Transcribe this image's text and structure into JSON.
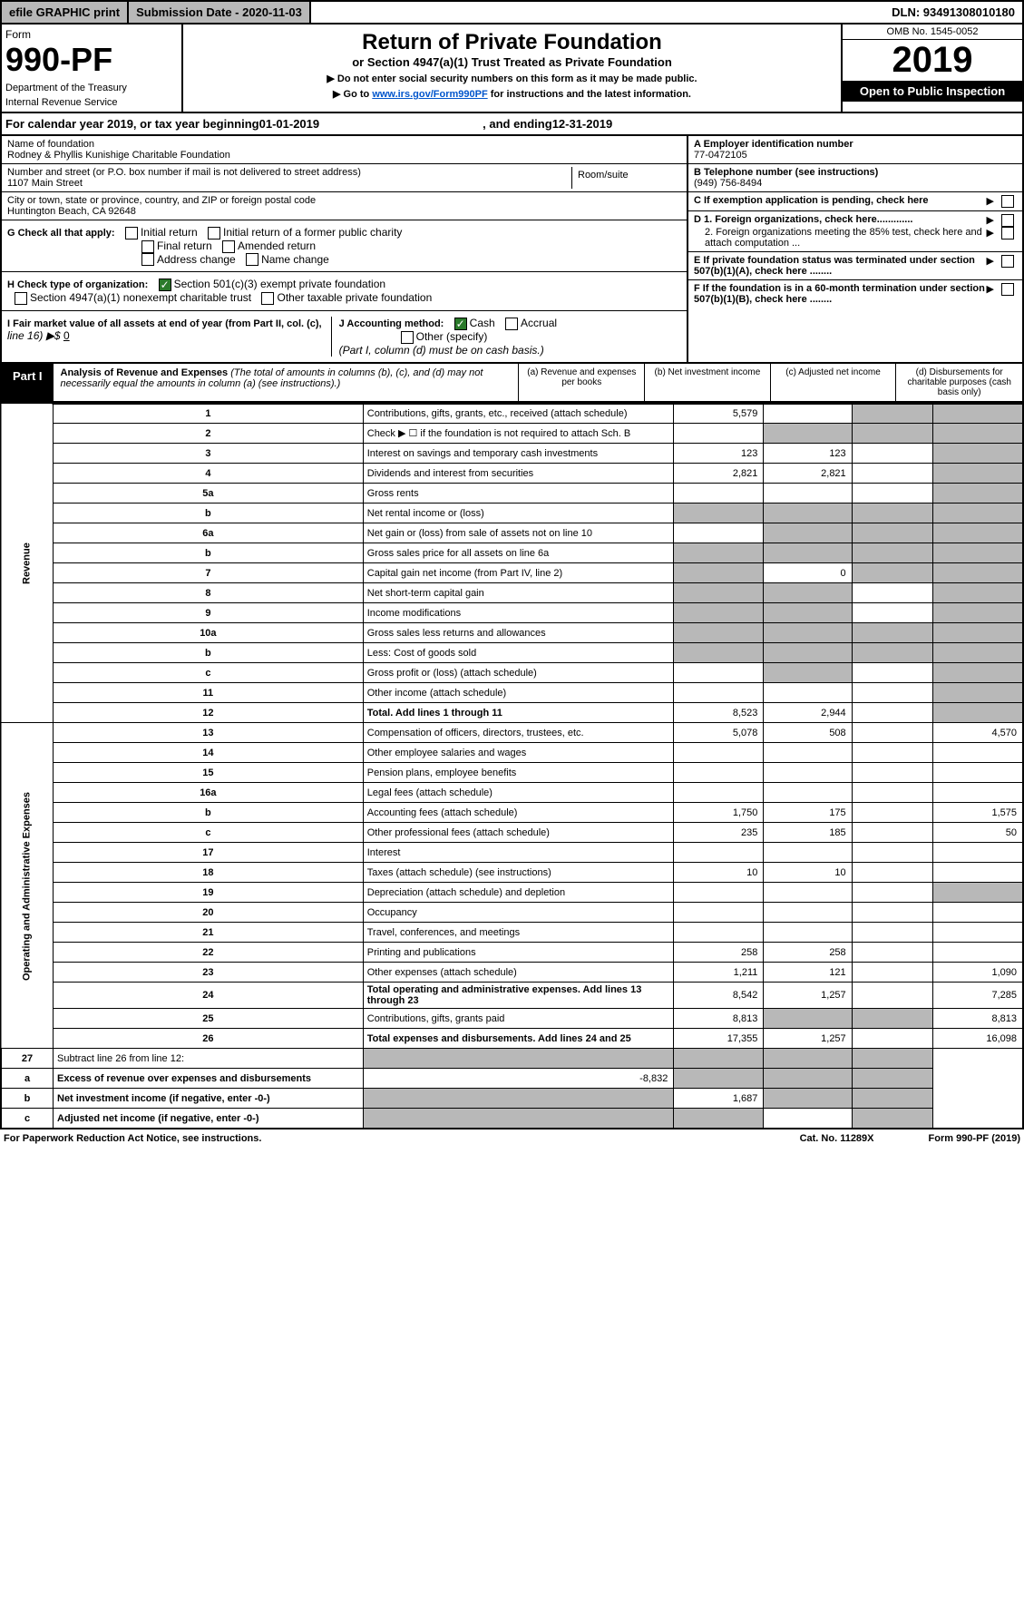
{
  "top": {
    "efile": "efile GRAPHIC print",
    "submission": "Submission Date - 2020-11-03",
    "dln": "DLN: 93491308010180"
  },
  "header": {
    "form_word": "Form",
    "form_num": "990-PF",
    "dept1": "Department of the Treasury",
    "dept2": "Internal Revenue Service",
    "title": "Return of Private Foundation",
    "subtitle": "or Section 4947(a)(1) Trust Treated as Private Foundation",
    "instr1": "▶ Do not enter social security numbers on this form as it may be made public.",
    "instr2_prefix": "▶ Go to ",
    "instr2_link": "www.irs.gov/Form990PF",
    "instr2_suffix": " for instructions and the latest information.",
    "omb": "OMB No. 1545-0052",
    "year": "2019",
    "open": "Open to Public Inspection"
  },
  "cal": {
    "prefix": "For calendar year 2019, or tax year beginning ",
    "begin": "01-01-2019",
    "mid": ", and ending ",
    "end": "12-31-2019"
  },
  "info": {
    "name_lbl": "Name of foundation",
    "name": "Rodney & Phyllis Kunishige Charitable Foundation",
    "addr_lbl": "Number and street (or P.O. box number if mail is not delivered to street address)",
    "addr": "1107 Main Street",
    "suite_lbl": "Room/suite",
    "city_lbl": "City or town, state or province, country, and ZIP or foreign postal code",
    "city": "Huntington Beach, CA  92648",
    "a_lbl": "A Employer identification number",
    "a_val": "77-0472105",
    "b_lbl": "B Telephone number (see instructions)",
    "b_val": "(949) 756-8494",
    "c_lbl": "C If exemption application is pending, check here",
    "d1_lbl": "D 1. Foreign organizations, check here.............",
    "d2_lbl": "2. Foreign organizations meeting the 85% test, check here and attach computation ...",
    "e_lbl": "E If private foundation status was terminated under section 507(b)(1)(A), check here ........",
    "f_lbl": "F If the foundation is in a 60-month termination under section 507(b)(1)(B), check here ........"
  },
  "checks": {
    "g_lbl": "G Check all that apply:",
    "g1": "Initial return",
    "g2": "Initial return of a former public charity",
    "g3": "Final return",
    "g4": "Amended return",
    "g5": "Address change",
    "g6": "Name change",
    "h_lbl": "H Check type of organization:",
    "h1": "Section 501(c)(3) exempt private foundation",
    "h2": "Section 4947(a)(1) nonexempt charitable trust",
    "h3": "Other taxable private foundation",
    "i_lbl": "I Fair market value of all assets at end of year (from Part II, col. (c),",
    "i_line": "line 16) ▶$ ",
    "i_val": "0",
    "j_lbl": "J Accounting method:",
    "j1": "Cash",
    "j2": "Accrual",
    "j3": "Other (specify)",
    "j_note": "(Part I, column (d) must be on cash basis.)"
  },
  "part1": {
    "label": "Part I",
    "title": "Analysis of Revenue and Expenses",
    "note": " (The total of amounts in columns (b), (c), and (d) may not necessarily equal the amounts in column (a) (see instructions).)",
    "col_a": "(a)   Revenue and expenses per books",
    "col_b": "(b)  Net investment income",
    "col_c": "(c)  Adjusted net income",
    "col_d": "(d)  Disbursements for charitable purposes (cash basis only)"
  },
  "sections": {
    "rev": "Revenue",
    "exp": "Operating and Administrative Expenses"
  },
  "rows": [
    {
      "n": "1",
      "d": "s",
      "a": "5,579",
      "b": "",
      "c": "s"
    },
    {
      "n": "2",
      "d": "s",
      "a": "",
      "b": "s",
      "c": "s",
      "html": true
    },
    {
      "n": "3",
      "d": "s",
      "a": "123",
      "b": "123",
      "c": ""
    },
    {
      "n": "4",
      "d": "s",
      "a": "2,821",
      "b": "2,821",
      "c": ""
    },
    {
      "n": "5a",
      "d": "s",
      "a": "",
      "b": "",
      "c": ""
    },
    {
      "n": "b",
      "d": "s",
      "a": "s",
      "b": "s",
      "c": "s"
    },
    {
      "n": "6a",
      "d": "s",
      "a": "",
      "b": "s",
      "c": "s"
    },
    {
      "n": "b",
      "d": "s",
      "a": "s",
      "b": "s",
      "c": "s"
    },
    {
      "n": "7",
      "d": "s",
      "a": "s",
      "b": "0",
      "c": "s"
    },
    {
      "n": "8",
      "d": "s",
      "a": "s",
      "b": "s",
      "c": ""
    },
    {
      "n": "9",
      "d": "s",
      "a": "s",
      "b": "s",
      "c": ""
    },
    {
      "n": "10a",
      "d": "s",
      "a": "s",
      "b": "s",
      "c": "s"
    },
    {
      "n": "b",
      "d": "s",
      "a": "s",
      "b": "s",
      "c": "s"
    },
    {
      "n": "c",
      "d": "s",
      "a": "",
      "b": "s",
      "c": ""
    },
    {
      "n": "11",
      "d": "s",
      "a": "",
      "b": "",
      "c": ""
    },
    {
      "n": "12",
      "d": "s",
      "a": "8,523",
      "b": "2,944",
      "c": "",
      "bold": true
    }
  ],
  "exp_rows": [
    {
      "n": "13",
      "d": "4,570",
      "a": "5,078",
      "b": "508",
      "c": ""
    },
    {
      "n": "14",
      "d": "",
      "a": "",
      "b": "",
      "c": ""
    },
    {
      "n": "15",
      "d": "",
      "a": "",
      "b": "",
      "c": ""
    },
    {
      "n": "16a",
      "d": "",
      "a": "",
      "b": "",
      "c": ""
    },
    {
      "n": "b",
      "d": "1,575",
      "a": "1,750",
      "b": "175",
      "c": ""
    },
    {
      "n": "c",
      "d": "50",
      "a": "235",
      "b": "185",
      "c": ""
    },
    {
      "n": "17",
      "d": "",
      "a": "",
      "b": "",
      "c": ""
    },
    {
      "n": "18",
      "d": "",
      "a": "10",
      "b": "10",
      "c": ""
    },
    {
      "n": "19",
      "d": "s",
      "a": "",
      "b": "",
      "c": ""
    },
    {
      "n": "20",
      "d": "",
      "a": "",
      "b": "",
      "c": ""
    },
    {
      "n": "21",
      "d": "",
      "a": "",
      "b": "",
      "c": ""
    },
    {
      "n": "22",
      "d": "",
      "a": "258",
      "b": "258",
      "c": ""
    },
    {
      "n": "23",
      "d": "1,090",
      "a": "1,211",
      "b": "121",
      "c": ""
    },
    {
      "n": "24",
      "d": "7,285",
      "a": "8,542",
      "b": "1,257",
      "c": "",
      "bold": true
    },
    {
      "n": "25",
      "d": "8,813",
      "a": "8,813",
      "b": "s",
      "c": "s"
    },
    {
      "n": "26",
      "d": "16,098",
      "a": "17,355",
      "b": "1,257",
      "c": "",
      "bold": true
    }
  ],
  "final_rows": [
    {
      "n": "27",
      "d": "s",
      "a": "s",
      "b": "s",
      "c": "s"
    },
    {
      "n": "a",
      "d": "s",
      "a": "-8,832",
      "b": "s",
      "c": "s",
      "bold": true
    },
    {
      "n": "b",
      "d": "s",
      "a": "s",
      "b": "1,687",
      "c": "s",
      "bold": true
    },
    {
      "n": "c",
      "d": "s",
      "a": "s",
      "b": "s",
      "c": "",
      "bold": true
    }
  ],
  "footer": {
    "left": "For Paperwork Reduction Act Notice, see instructions.",
    "mid": "Cat. No. 11289X",
    "right": "Form 990-PF (2019)"
  }
}
